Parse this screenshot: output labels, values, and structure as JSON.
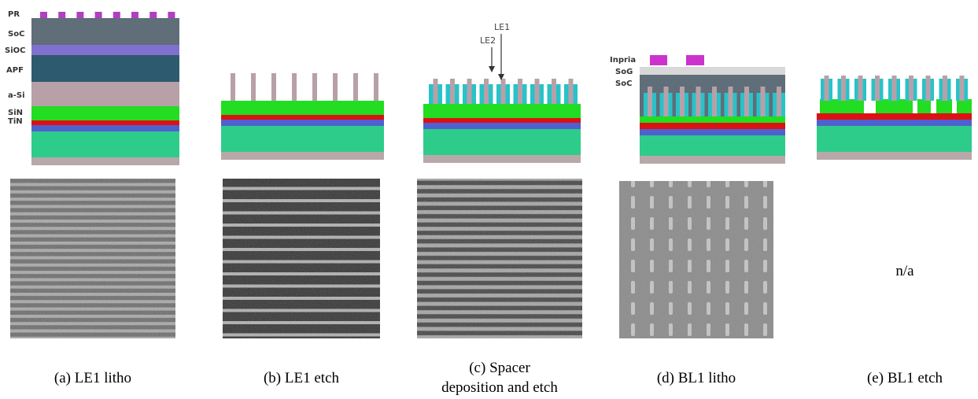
{
  "panels": [
    {
      "caption": [
        "(a) LE1 litho"
      ]
    },
    {
      "caption": [
        "(b) LE1 etch"
      ]
    },
    {
      "caption": [
        "(c) Spacer",
        "deposition and etch"
      ]
    },
    {
      "caption": [
        "(d) BL1 litho"
      ]
    },
    {
      "caption": [
        "(e) BL1 etch"
      ]
    }
  ],
  "stack_labels": [
    "PR",
    "SoC",
    "SiOC",
    "APF",
    "a-Si",
    "SiN",
    "TiN"
  ],
  "arrow_labels": [
    "LE1",
    "LE2"
  ],
  "litho_labels": [
    "Inpria",
    "SoG",
    "SoC"
  ],
  "missing_image": "n/a"
}
